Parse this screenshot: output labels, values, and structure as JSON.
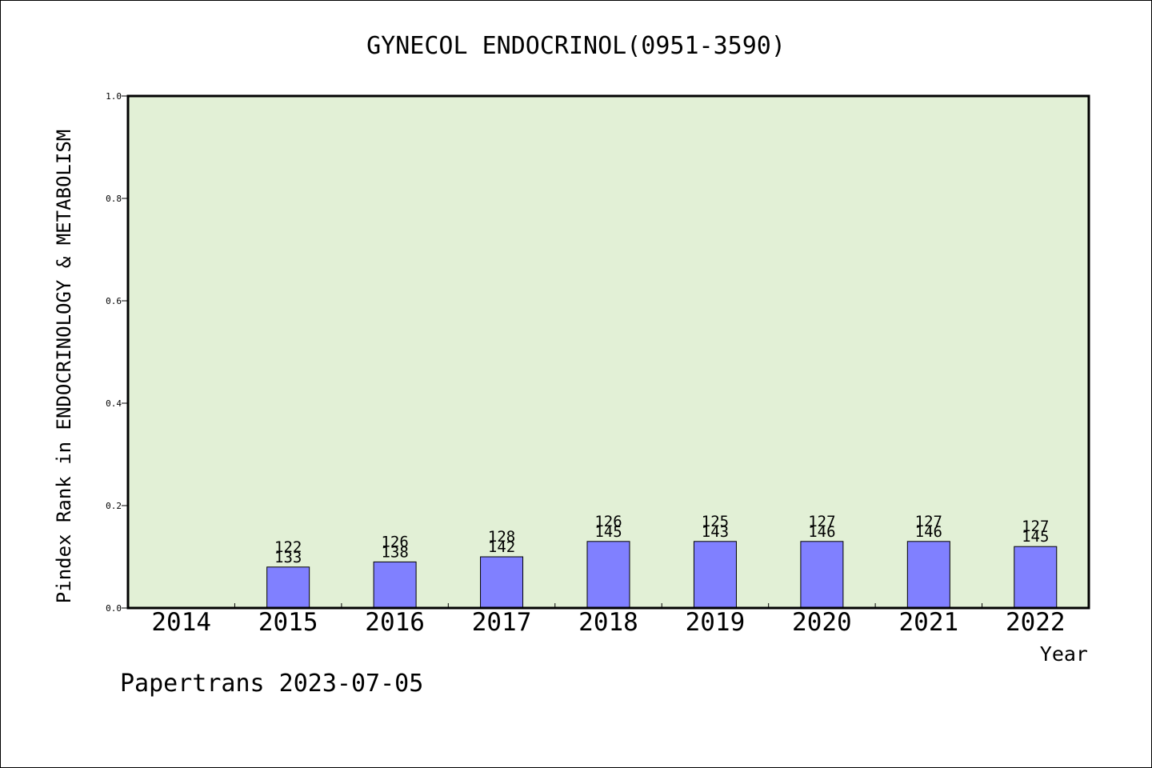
{
  "chart_data": {
    "type": "bar",
    "title": "GYNECOL ENDOCRINOL(0951-3590)",
    "ylabel": "Pindex Rank in ENDOCRINOLOGY & METABOLISM",
    "xlabel": "Year",
    "footer": "Papertrans 2023-07-05",
    "ylim": [
      0,
      1.0
    ],
    "yticks": [
      "0.0",
      "0.2",
      "0.4",
      "0.6",
      "0.8",
      "1.0"
    ],
    "categories": [
      "2014",
      "2015",
      "2016",
      "2017",
      "2018",
      "2019",
      "2020",
      "2021",
      "2022"
    ],
    "series": [
      {
        "values": [
          null,
          0.08,
          0.09,
          0.1,
          0.13,
          0.13,
          0.13,
          0.13,
          0.12
        ],
        "rank": [
          null,
          "122",
          "126",
          "128",
          "126",
          "125",
          "127",
          "127",
          "127"
        ],
        "total": [
          null,
          "133",
          "138",
          "142",
          "145",
          "143",
          "146",
          "146",
          "145"
        ]
      }
    ],
    "grid": false,
    "colors": {
      "plot_bg": "#e2f0d6",
      "bar": "#8080ff",
      "axis": "#000000"
    }
  }
}
